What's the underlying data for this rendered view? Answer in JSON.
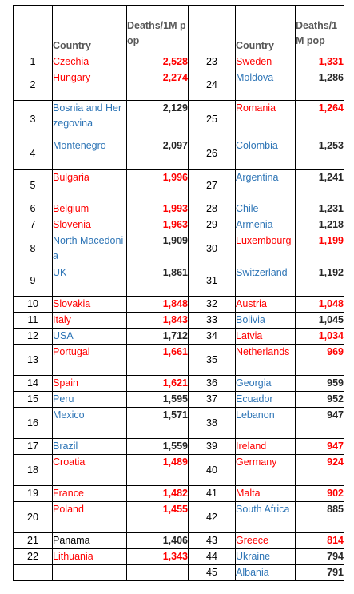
{
  "headers": {
    "country_left": "Country",
    "deaths_left": "Deaths/1M pop",
    "country_right": "Country",
    "deaths_right": "Deaths/1M pop"
  },
  "rows": [
    {
      "left": {
        "rank": "1",
        "country": "Czechia",
        "deaths": "2,528",
        "country_color": "red",
        "deaths_color": "red"
      },
      "right": {
        "rank": "23",
        "country": "Sweden",
        "deaths": "1,331",
        "country_color": "red",
        "deaths_color": "red"
      }
    },
    {
      "left": {
        "rank": "2",
        "country": "Hungary",
        "deaths": "2,274",
        "country_color": "red",
        "deaths_color": "red"
      },
      "right": {
        "rank": "24",
        "country": "Moldova",
        "deaths": "1,286",
        "country_color": "blue",
        "deaths_color": "black"
      }
    },
    {
      "left": {
        "rank": "3",
        "country": "Bosnia and Herzegovina",
        "deaths": "2,129",
        "country_color": "blue",
        "deaths_color": "black"
      },
      "right": {
        "rank": "25",
        "country": "Romania",
        "deaths": "1,264",
        "country_color": "red",
        "deaths_color": "red"
      }
    },
    {
      "left": {
        "rank": "4",
        "country": "Montenegro",
        "deaths": "2,097",
        "country_color": "blue",
        "deaths_color": "black"
      },
      "right": {
        "rank": "26",
        "country": "Colombia",
        "deaths": "1,253",
        "country_color": "blue",
        "deaths_color": "black"
      }
    },
    {
      "left": {
        "rank": "5",
        "country": "Bulgaria",
        "deaths": "1,996",
        "country_color": "red",
        "deaths_color": "red"
      },
      "right": {
        "rank": "27",
        "country": "Argentina",
        "deaths": "1,241",
        "country_color": "blue",
        "deaths_color": "black"
      }
    },
    {
      "left": {
        "rank": "6",
        "country": "Belgium",
        "deaths": "1,993",
        "country_color": "red",
        "deaths_color": "red"
      },
      "right": {
        "rank": "28",
        "country": "Chile",
        "deaths": "1,231",
        "country_color": "blue",
        "deaths_color": "black"
      }
    },
    {
      "left": {
        "rank": "7",
        "country": "Slovenia",
        "deaths": "1,963",
        "country_color": "red",
        "deaths_color": "red"
      },
      "right": {
        "rank": "29",
        "country": "Armenia",
        "deaths": "1,218",
        "country_color": "blue",
        "deaths_color": "black"
      }
    },
    {
      "left": {
        "rank": "8",
        "country": "North Macedonia",
        "deaths": "1,909",
        "country_color": "blue",
        "deaths_color": "black"
      },
      "right": {
        "rank": "30",
        "country": "Luxembourg",
        "deaths": "1,199",
        "country_color": "red",
        "deaths_color": "red"
      }
    },
    {
      "left": {
        "rank": "9",
        "country": "UK",
        "deaths": "1,861",
        "country_color": "blue",
        "deaths_color": "black"
      },
      "right": {
        "rank": "31",
        "country": "Switzerland",
        "deaths": "1,192",
        "country_color": "blue",
        "deaths_color": "black"
      }
    },
    {
      "left": {
        "rank": "10",
        "country": "Slovakia",
        "deaths": "1,848",
        "country_color": "red",
        "deaths_color": "red"
      },
      "right": {
        "rank": "32",
        "country": "Austria",
        "deaths": "1,048",
        "country_color": "red",
        "deaths_color": "red"
      }
    },
    {
      "left": {
        "rank": "11",
        "country": "Italy",
        "deaths": "1,843",
        "country_color": "red",
        "deaths_color": "red"
      },
      "right": {
        "rank": "33",
        "country": "Bolivia",
        "deaths": "1,045",
        "country_color": "blue",
        "deaths_color": "black"
      }
    },
    {
      "left": {
        "rank": "12",
        "country": "USA",
        "deaths": "1,712",
        "country_color": "blue",
        "deaths_color": "black"
      },
      "right": {
        "rank": "34",
        "country": "Latvia",
        "deaths": "1,034",
        "country_color": "red",
        "deaths_color": "red"
      }
    },
    {
      "left": {
        "rank": "13",
        "country": "Portugal",
        "deaths": "1,661",
        "country_color": "red",
        "deaths_color": "red"
      },
      "right": {
        "rank": "35",
        "country": "Netherlands",
        "deaths": "969",
        "country_color": "red",
        "deaths_color": "red"
      }
    },
    {
      "left": {
        "rank": "14",
        "country": "Spain",
        "deaths": "1,621",
        "country_color": "red",
        "deaths_color": "red"
      },
      "right": {
        "rank": "36",
        "country": "Georgia",
        "deaths": "959",
        "country_color": "blue",
        "deaths_color": "black"
      }
    },
    {
      "left": {
        "rank": "15",
        "country": "Peru",
        "deaths": "1,595",
        "country_color": "blue",
        "deaths_color": "black"
      },
      "right": {
        "rank": "37",
        "country": "Ecuador",
        "deaths": "952",
        "country_color": "blue",
        "deaths_color": "black"
      }
    },
    {
      "left": {
        "rank": "16",
        "country": "Mexico",
        "deaths": "1,571",
        "country_color": "blue",
        "deaths_color": "black"
      },
      "right": {
        "rank": "38",
        "country": "Lebanon",
        "deaths": "947",
        "country_color": "blue",
        "deaths_color": "black"
      }
    },
    {
      "left": {
        "rank": "17",
        "country": "Brazil",
        "deaths": "1,559",
        "country_color": "blue",
        "deaths_color": "black"
      },
      "right": {
        "rank": "39",
        "country": "Ireland",
        "deaths": "947",
        "country_color": "red",
        "deaths_color": "red"
      }
    },
    {
      "left": {
        "rank": "18",
        "country": "Croatia",
        "deaths": "1,489",
        "country_color": "red",
        "deaths_color": "red"
      },
      "right": {
        "rank": "40",
        "country": "Germany",
        "deaths": "924",
        "country_color": "red",
        "deaths_color": "red"
      }
    },
    {
      "left": {
        "rank": "19",
        "country": "France",
        "deaths": "1,482",
        "country_color": "red",
        "deaths_color": "red"
      },
      "right": {
        "rank": "41",
        "country": "Malta",
        "deaths": "902",
        "country_color": "red",
        "deaths_color": "red"
      }
    },
    {
      "left": {
        "rank": "20",
        "country": "Poland",
        "deaths": "1,455",
        "country_color": "red",
        "deaths_color": "red"
      },
      "right": {
        "rank": "42",
        "country": "South Africa",
        "deaths": "885",
        "country_color": "blue",
        "deaths_color": "black"
      }
    },
    {
      "left": {
        "rank": "21",
        "country": "Panama",
        "deaths": "1,406",
        "country_color": "black",
        "deaths_color": "black"
      },
      "right": {
        "rank": "43",
        "country": "Greece",
        "deaths": "814",
        "country_color": "red",
        "deaths_color": "red"
      }
    },
    {
      "left": {
        "rank": "22",
        "country": "Lithuania",
        "deaths": "1,343",
        "country_color": "red",
        "deaths_color": "red"
      },
      "right": {
        "rank": "44",
        "country": "Ukraine",
        "deaths": "794",
        "country_color": "blue",
        "deaths_color": "black"
      }
    }
  ],
  "last_row": {
    "rank": "45",
    "country": "Albania",
    "deaths": "791",
    "country_color": "blue",
    "deaths_color": "black"
  },
  "colors": {
    "red": "#ff0000",
    "blue": "#2e75b6",
    "black": "#000000",
    "header_gray": "#595959"
  }
}
